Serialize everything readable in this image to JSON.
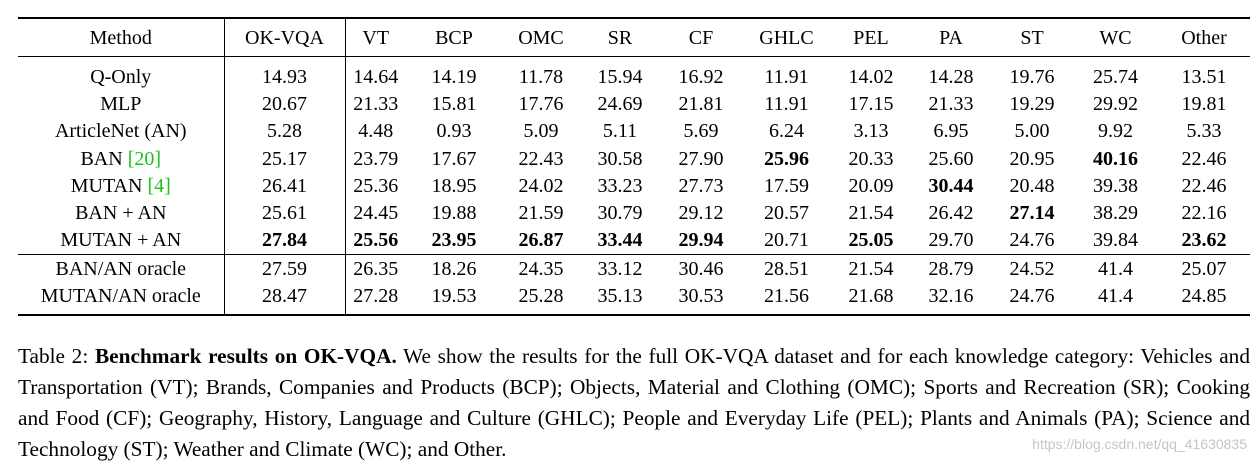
{
  "table": {
    "columns": [
      "Method",
      "OK-VQA",
      "VT",
      "BCP",
      "OMC",
      "SR",
      "CF",
      "GHLC",
      "PEL",
      "PA",
      "ST",
      "WC",
      "Other"
    ],
    "rows": [
      {
        "method": "Q-Only",
        "values": [
          "14.93",
          "14.64",
          "14.19",
          "11.78",
          "15.94",
          "16.92",
          "11.91",
          "14.02",
          "14.28",
          "19.76",
          "25.74",
          "13.51"
        ]
      },
      {
        "method": "MLP",
        "values": [
          "20.67",
          "21.33",
          "15.81",
          "17.76",
          "24.69",
          "21.81",
          "11.91",
          "17.15",
          "21.33",
          "19.29",
          "29.92",
          "19.81"
        ]
      },
      {
        "method": "ArticleNet (AN)",
        "values": [
          "5.28",
          "4.48",
          "0.93",
          "5.09",
          "5.11",
          "5.69",
          "6.24",
          "3.13",
          "6.95",
          "5.00",
          "9.92",
          "5.33"
        ]
      },
      {
        "method": "BAN ",
        "cite": "[20]",
        "values": [
          "25.17",
          "23.79",
          "17.67",
          "22.43",
          "30.58",
          "27.90",
          "25.96",
          "20.33",
          "25.60",
          "20.95",
          "40.16",
          "22.46"
        ]
      },
      {
        "method": "MUTAN ",
        "cite": "[4]",
        "values": [
          "26.41",
          "25.36",
          "18.95",
          "24.02",
          "33.23",
          "27.73",
          "17.59",
          "20.09",
          "30.44",
          "20.48",
          "39.38",
          "22.46"
        ]
      },
      {
        "method": "BAN + AN",
        "values": [
          "25.61",
          "24.45",
          "19.88",
          "21.59",
          "30.79",
          "29.12",
          "20.57",
          "21.54",
          "26.42",
          "27.14",
          "38.29",
          "22.16"
        ]
      },
      {
        "method": "MUTAN + AN",
        "values": [
          "27.84",
          "25.56",
          "23.95",
          "26.87",
          "33.44",
          "29.94",
          "20.71",
          "25.05",
          "29.70",
          "24.76",
          "39.84",
          "23.62"
        ]
      },
      {
        "method": "BAN/AN oracle",
        "values": [
          "27.59",
          "26.35",
          "18.26",
          "24.35",
          "33.12",
          "30.46",
          "28.51",
          "21.54",
          "28.79",
          "24.52",
          "41.4",
          "25.07"
        ]
      },
      {
        "method": "MUTAN/AN oracle",
        "values": [
          "28.47",
          "27.28",
          "19.53",
          "25.28",
          "35.13",
          "30.53",
          "21.56",
          "21.68",
          "32.16",
          "24.76",
          "41.4",
          "24.85"
        ]
      }
    ],
    "bold_cells": [
      [
        3,
        6
      ],
      [
        3,
        10
      ],
      [
        4,
        8
      ],
      [
        5,
        9
      ],
      [
        6,
        0
      ],
      [
        6,
        1
      ],
      [
        6,
        2
      ],
      [
        6,
        3
      ],
      [
        6,
        4
      ],
      [
        6,
        5
      ],
      [
        6,
        7
      ],
      [
        6,
        11
      ]
    ],
    "cite_color": "#1fbf1f"
  },
  "caption": {
    "label": "Table 2: ",
    "title": "Benchmark results on OK-VQA.",
    "body": " We show the results for the full OK-VQA dataset and for each knowledge category: Vehicles and Transportation (VT); Brands, Companies and Products (BCP); Objects, Material and Clothing (OMC); Sports and Recreation (SR); Cooking and Food (CF); Geography, History, Language and Culture (GHLC); People and Everyday Life (PEL); Plants and Animals (PA); Science and Technology (ST); Weather and Climate (WC); and Other."
  },
  "watermark": "https://blog.csdn.net/qq_41630835"
}
